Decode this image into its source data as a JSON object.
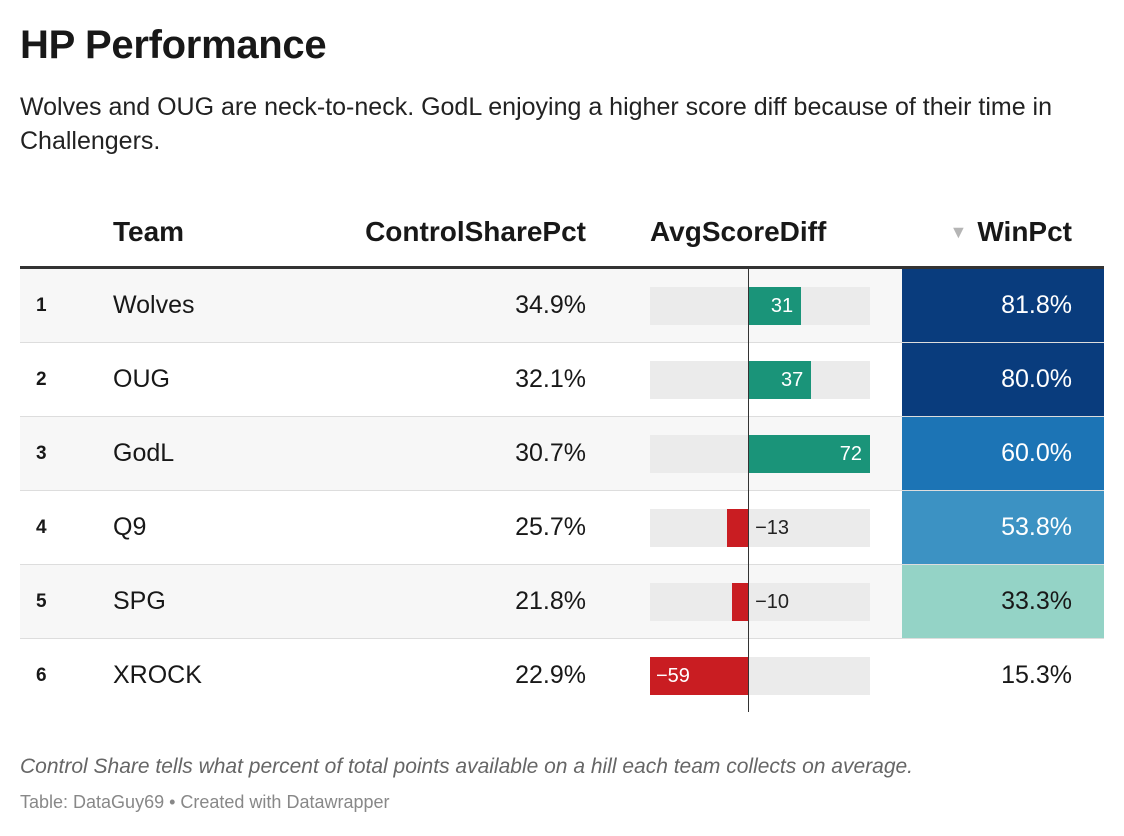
{
  "title": "HP Performance",
  "subtitle": "Wolves and OUG are neck-to-neck. GodL enjoying a higher score diff because of their time in Challengers.",
  "notes": "Control Share tells what percent of total points available on a hill each team collects on average.",
  "source": "Table: DataGuy69 • Created with Datawrapper",
  "sort_icon": "▼",
  "colors": {
    "positive": "#1a9479",
    "negative": "#c91d22",
    "track": "#ebebeb",
    "win_scale": [
      "#94d3c6",
      "#3c92c3",
      "#1c74b5",
      "#093c7d"
    ]
  },
  "chart_data": {
    "type": "table",
    "columns": [
      "Team",
      "ControlSharePct",
      "AvgScoreDiff",
      "WinPct"
    ],
    "sorted_by": "WinPct",
    "sort_order": "descending",
    "avg_score_diff_range": [
      -59,
      72
    ],
    "rows": [
      {
        "rank": "1",
        "team": "Wolves",
        "control": "34.9%",
        "avg": 31,
        "avg_label": "31",
        "win": "81.8%",
        "win_value": 81.8
      },
      {
        "rank": "2",
        "team": "OUG",
        "control": "32.1%",
        "avg": 37,
        "avg_label": "37",
        "win": "80.0%",
        "win_value": 80.0
      },
      {
        "rank": "3",
        "team": "GodL",
        "control": "30.7%",
        "avg": 72,
        "avg_label": "72",
        "win": "60.0%",
        "win_value": 60.0
      },
      {
        "rank": "4",
        "team": "Q9",
        "control": "25.7%",
        "avg": -13,
        "avg_label": "−13",
        "win": "53.8%",
        "win_value": 53.8
      },
      {
        "rank": "5",
        "team": "SPG",
        "control": "21.8%",
        "avg": -10,
        "avg_label": "−10",
        "win": "33.3%",
        "win_value": 33.3
      },
      {
        "rank": "6",
        "team": "XROCK",
        "control": "22.9%",
        "avg": -59,
        "avg_label": "−59",
        "win": "15.3%",
        "win_value": 15.3
      }
    ]
  }
}
